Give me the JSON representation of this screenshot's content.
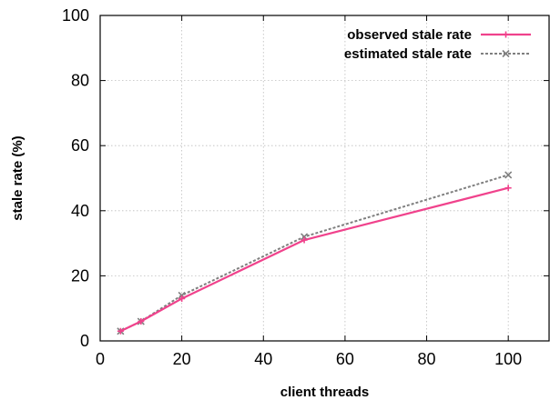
{
  "chart_data": {
    "type": "line",
    "title": "",
    "xlabel": "client threads",
    "ylabel": "stale rate (%)",
    "xlim": [
      0,
      110
    ],
    "ylim": [
      0,
      100
    ],
    "xticks": [
      0,
      20,
      40,
      60,
      80,
      100
    ],
    "yticks": [
      0,
      20,
      40,
      60,
      80,
      100
    ],
    "grid": true,
    "legend_position": "top-right",
    "series": [
      {
        "name": "observed stale rate",
        "color": "#f0428c",
        "line_style": "solid",
        "marker": "plus",
        "x": [
          5,
          10,
          20,
          50,
          100
        ],
        "y": [
          3,
          6,
          13,
          31,
          47
        ]
      },
      {
        "name": "estimated stale rate",
        "color": "#7f7f7f",
        "line_style": "dotted",
        "marker": "x",
        "x": [
          5,
          10,
          20,
          50,
          100
        ],
        "y": [
          3,
          6,
          14,
          32,
          51
        ]
      }
    ]
  }
}
